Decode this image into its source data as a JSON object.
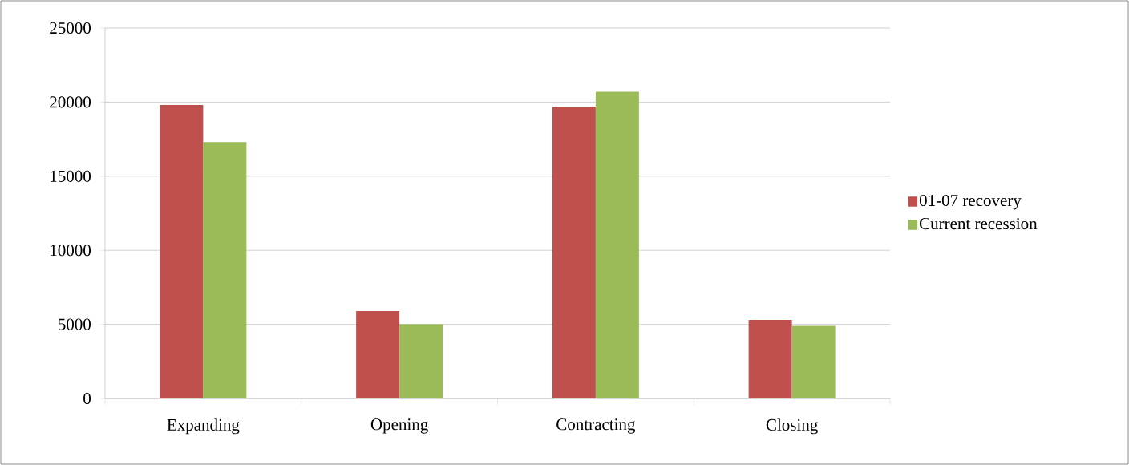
{
  "chart_data": {
    "type": "bar",
    "categories": [
      "Expanding",
      "Opening",
      "Contracting",
      "Closing"
    ],
    "series": [
      {
        "name": "01-07 recovery",
        "color": "#c0504d",
        "values": [
          19800,
          5900,
          19700,
          5300
        ]
      },
      {
        "name": "Current recession",
        "color": "#9bbb59",
        "values": [
          17300,
          5000,
          20700,
          4900
        ]
      }
    ],
    "ylim": [
      0,
      25000
    ],
    "yticks": [
      0,
      5000,
      10000,
      15000,
      20000,
      25000
    ],
    "grid": "y",
    "legend": "right"
  }
}
